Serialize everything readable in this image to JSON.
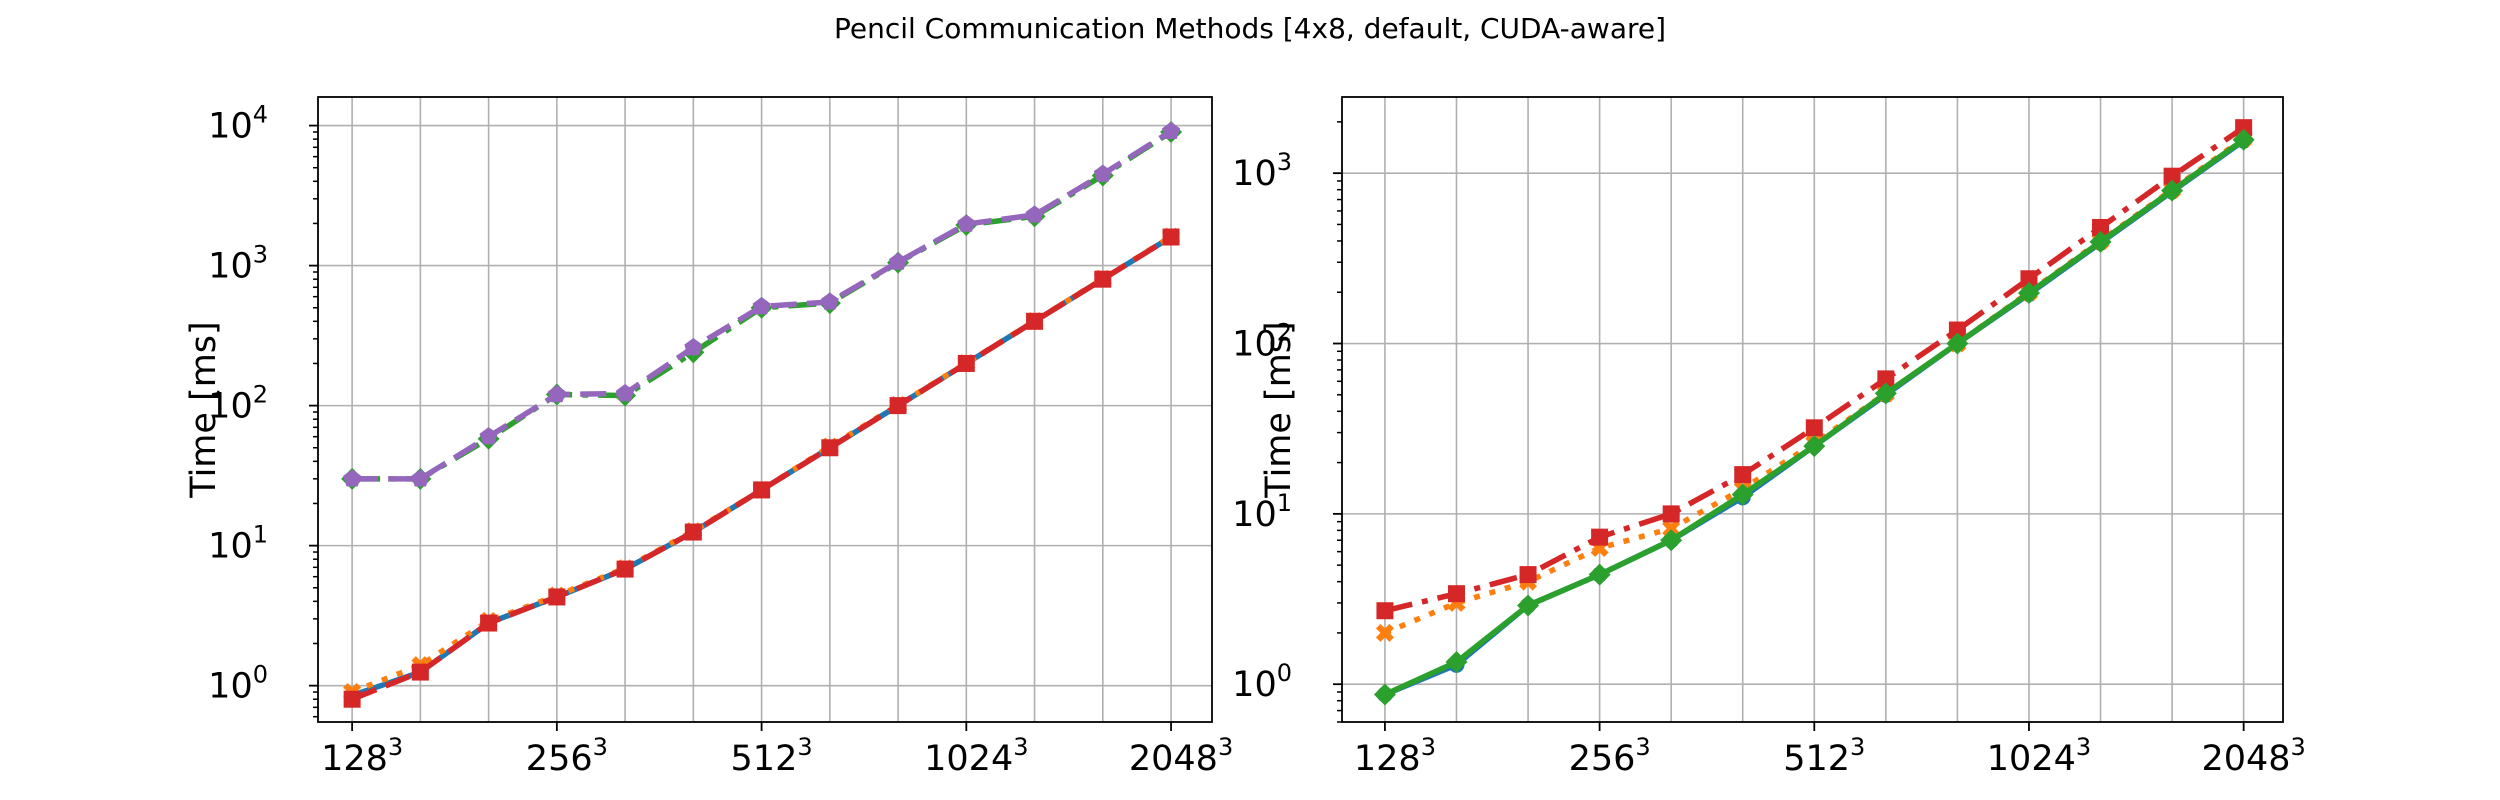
{
  "figure": {
    "title": "Pencil Communication Methods [4x8, default, CUDA-aware]"
  },
  "chart_data": [
    {
      "type": "line",
      "ylabel": "Time [ms]",
      "yscale": "log",
      "ylim": [
        0.55,
        16000
      ],
      "grid": true,
      "x": [
        1,
        2,
        3,
        4,
        5,
        6,
        7,
        8,
        9,
        10,
        11,
        12,
        13
      ],
      "xlim": [
        0.5,
        13.6
      ],
      "xticks": [
        1,
        4,
        7,
        10,
        13
      ],
      "xticklabels": [
        {
          "base": "128",
          "exp": "3"
        },
        {
          "base": "256",
          "exp": "3"
        },
        {
          "base": "512",
          "exp": "3"
        },
        {
          "base": "1024",
          "exp": "3"
        },
        {
          "base": "2048",
          "exp": "3"
        }
      ],
      "yticks": [
        {
          "value": 1,
          "base": "10",
          "exp": "0"
        },
        {
          "value": 10,
          "base": "10",
          "exp": "1"
        },
        {
          "value": 100,
          "base": "10",
          "exp": "2"
        },
        {
          "value": 1000,
          "base": "10",
          "exp": "3"
        },
        {
          "value": 10000,
          "base": "10",
          "exp": "4"
        }
      ],
      "series": [
        {
          "color": "#1f77b4",
          "dash": "solid",
          "marker": "circle",
          "values": [
            0.85,
            1.25,
            2.8,
            4.3,
            6.8,
            12.5,
            25,
            50,
            100,
            200,
            400,
            800,
            1600
          ]
        },
        {
          "color": "#ff7f0e",
          "dash": "dotted",
          "marker": "x",
          "values": [
            0.9,
            1.4,
            2.9,
            4.4,
            6.9,
            12.7,
            25,
            51,
            101,
            201,
            402,
            805,
            1610
          ]
        },
        {
          "color": "#2ca02c",
          "dash": "dashdot",
          "marker": "diamond",
          "values": [
            30,
            30,
            58,
            120,
            118,
            240,
            500,
            540,
            1050,
            1950,
            2250,
            4400,
            9000
          ]
        },
        {
          "color": "#d62728",
          "dash": "dashed",
          "marker": "square",
          "values": [
            0.8,
            1.25,
            2.8,
            4.3,
            6.8,
            12.5,
            25,
            50,
            100,
            200,
            400,
            800,
            1600
          ]
        },
        {
          "color": "#9467bd",
          "dash": "dashed",
          "marker": "pentagon",
          "values": [
            30,
            30,
            60,
            120,
            122,
            260,
            510,
            550,
            1060,
            1980,
            2300,
            4500,
            9100
          ]
        }
      ]
    },
    {
      "type": "line",
      "ylabel": "Time [ms]",
      "yscale": "log",
      "ylim": [
        0.6,
        2800
      ],
      "grid": true,
      "x": [
        1,
        2,
        3,
        4,
        5,
        6,
        7,
        8,
        9,
        10,
        11,
        12,
        13
      ],
      "xlim": [
        0.4,
        13.55
      ],
      "xticks": [
        1,
        4,
        7,
        10,
        13
      ],
      "xticklabels": [
        {
          "base": "128",
          "exp": "3"
        },
        {
          "base": "256",
          "exp": "3"
        },
        {
          "base": "512",
          "exp": "3"
        },
        {
          "base": "1024",
          "exp": "3"
        },
        {
          "base": "2048",
          "exp": "3"
        }
      ],
      "yticks": [
        {
          "value": 1,
          "base": "10",
          "exp": "0"
        },
        {
          "value": 10,
          "base": "10",
          "exp": "1"
        },
        {
          "value": 100,
          "base": "10",
          "exp": "2"
        },
        {
          "value": 1000,
          "base": "10",
          "exp": "3"
        }
      ],
      "series": [
        {
          "color": "#1f77b4",
          "dash": "solid",
          "marker": "circle",
          "values": [
            0.87,
            1.3,
            2.9,
            4.4,
            7.0,
            12.5,
            25,
            50,
            100,
            195,
            390,
            780,
            1550
          ]
        },
        {
          "color": "#ff7f0e",
          "dash": "dotted",
          "marker": "x",
          "values": [
            2.0,
            3.0,
            4.0,
            6.3,
            8.2,
            14,
            26,
            51,
            100,
            200,
            400,
            800,
            1600
          ]
        },
        {
          "color": "#d62728",
          "dash": "dashdot",
          "marker": "square",
          "values": [
            2.7,
            3.4,
            4.4,
            7.3,
            10,
            17,
            32,
            62,
            120,
            240,
            480,
            960,
            1850
          ]
        },
        {
          "color": "#2ca02c",
          "dash": "solid",
          "marker": "diamond",
          "values": [
            0.87,
            1.35,
            2.9,
            4.4,
            7.0,
            13,
            25,
            51,
            100,
            198,
            395,
            790,
            1570
          ]
        }
      ]
    }
  ]
}
